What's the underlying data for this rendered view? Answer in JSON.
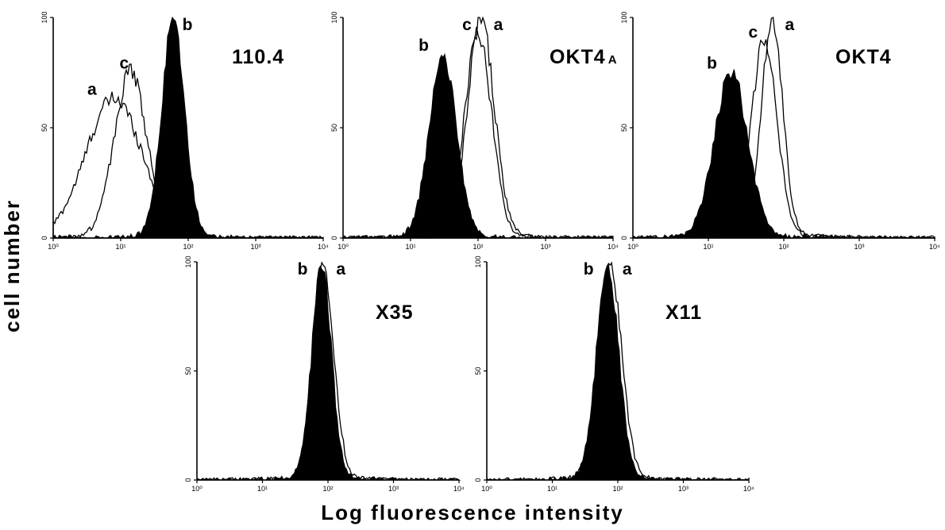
{
  "figure": {
    "ylabel": "cell number",
    "xlabel": "Log fluorescence intensity"
  },
  "chart_data": [
    {
      "type": "area",
      "title": "110.4",
      "x_scale": "log",
      "xlim": [
        1,
        10000
      ],
      "ylim": [
        0,
        100
      ],
      "x_ticks": [
        "10⁰",
        "10¹",
        "10²",
        "10³",
        "10⁴"
      ],
      "y_ticks": [
        "0",
        "50",
        "100"
      ],
      "series": [
        {
          "name": "a",
          "style": "outline",
          "peak_x": 8,
          "peak_y": 62,
          "width": 0.42
        },
        {
          "name": "c",
          "style": "outline",
          "peak_x": 14,
          "peak_y": 74,
          "width": 0.24
        },
        {
          "name": "b",
          "style": "filled",
          "peak_x": 60,
          "peak_y": 98,
          "width": 0.17
        }
      ]
    },
    {
      "type": "area",
      "title": "OKT4",
      "title_suffix": "A",
      "x_scale": "log",
      "xlim": [
        1,
        10000
      ],
      "ylim": [
        0,
        100
      ],
      "x_ticks": [
        "10⁰",
        "10¹",
        "10²",
        "10³",
        "10⁴"
      ],
      "y_ticks": [
        "0",
        "50",
        "100"
      ],
      "series": [
        {
          "name": "b",
          "style": "filled",
          "peak_x": 30,
          "peak_y": 82,
          "width": 0.2
        },
        {
          "name": "c",
          "style": "outline",
          "peak_x": 100,
          "peak_y": 92,
          "width": 0.2
        },
        {
          "name": "a",
          "style": "outline",
          "peak_x": 110,
          "peak_y": 98,
          "width": 0.2
        }
      ]
    },
    {
      "type": "area",
      "title": "OKT4",
      "x_scale": "log",
      "xlim": [
        1,
        10000
      ],
      "ylim": [
        0,
        100
      ],
      "x_ticks": [
        "10⁰",
        "10¹",
        "10²",
        "10³",
        "10⁴"
      ],
      "y_ticks": [
        "0",
        "50",
        "100"
      ],
      "series": [
        {
          "name": "b",
          "style": "filled",
          "peak_x": 20,
          "peak_y": 74,
          "width": 0.22
        },
        {
          "name": "c",
          "style": "outline",
          "peak_x": 55,
          "peak_y": 88,
          "width": 0.17
        },
        {
          "name": "a",
          "style": "outline",
          "peak_x": 70,
          "peak_y": 98,
          "width": 0.14
        }
      ]
    },
    {
      "type": "area",
      "title": "X35",
      "x_scale": "log",
      "xlim": [
        1,
        10000
      ],
      "ylim": [
        0,
        100
      ],
      "x_ticks": [
        "10⁰",
        "10¹",
        "10²",
        "10³",
        "10⁴"
      ],
      "y_ticks": [
        "0",
        "50",
        "100"
      ],
      "series": [
        {
          "name": "b",
          "style": "filled",
          "peak_x": 80,
          "peak_y": 96,
          "width": 0.15
        },
        {
          "name": "a",
          "style": "outline",
          "peak_x": 85,
          "peak_y": 98,
          "width": 0.16
        }
      ]
    },
    {
      "type": "area",
      "title": "X11",
      "x_scale": "log",
      "xlim": [
        1,
        10000
      ],
      "ylim": [
        0,
        100
      ],
      "x_ticks": [
        "10⁰",
        "10¹",
        "10²",
        "10³",
        "10⁴"
      ],
      "y_ticks": [
        "0",
        "50",
        "100"
      ],
      "series": [
        {
          "name": "b",
          "style": "filled",
          "peak_x": 70,
          "peak_y": 96,
          "width": 0.17
        },
        {
          "name": "a",
          "style": "outline",
          "peak_x": 75,
          "peak_y": 98,
          "width": 0.18
        }
      ]
    }
  ]
}
